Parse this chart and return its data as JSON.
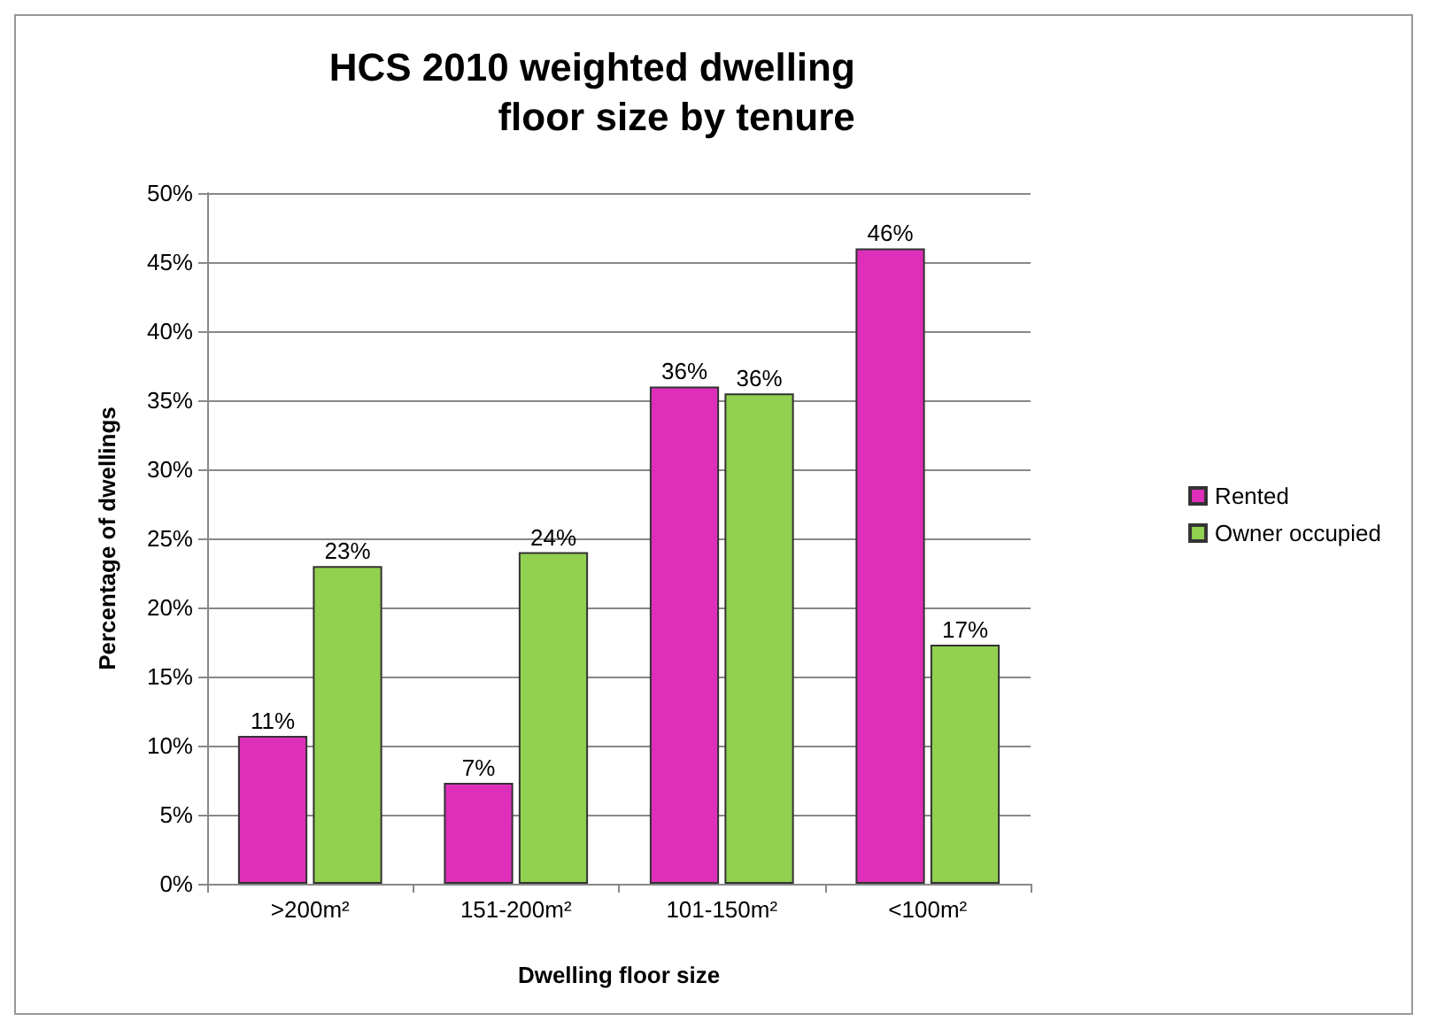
{
  "chart_data": {
    "type": "bar",
    "title": "HCS 2010 weighted dwelling\nfloor size by tenure",
    "xlabel": "Dwelling floor size",
    "ylabel": "Percentage of dwellings",
    "categories": [
      ">200m²",
      "151-200m²",
      "101-150m²",
      "<100m²"
    ],
    "series": [
      {
        "name": "Rented",
        "color": "#dd2fba",
        "values": [
          10.7,
          7.3,
          36,
          46
        ],
        "value_labels": [
          "11%",
          "7%",
          "36%",
          "46%"
        ]
      },
      {
        "name": "Owner occupied",
        "color": "#92d050",
        "values": [
          23,
          24,
          35.5,
          17.3
        ],
        "value_labels": [
          "23%",
          "24%",
          "36%",
          "17%"
        ]
      }
    ],
    "ylim": [
      0,
      50
    ],
    "yticks": [
      {
        "value": 0,
        "label": "0%"
      },
      {
        "value": 5,
        "label": "5%"
      },
      {
        "value": 10,
        "label": "10%"
      },
      {
        "value": 15,
        "label": "15%"
      },
      {
        "value": 20,
        "label": "20%"
      },
      {
        "value": 25,
        "label": "25%"
      },
      {
        "value": 30,
        "label": "30%"
      },
      {
        "value": 35,
        "label": "35%"
      },
      {
        "value": 40,
        "label": "40%"
      },
      {
        "value": 45,
        "label": "45%"
      },
      {
        "value": 50,
        "label": "50%"
      }
    ],
    "grid": "y",
    "legend": "right"
  }
}
